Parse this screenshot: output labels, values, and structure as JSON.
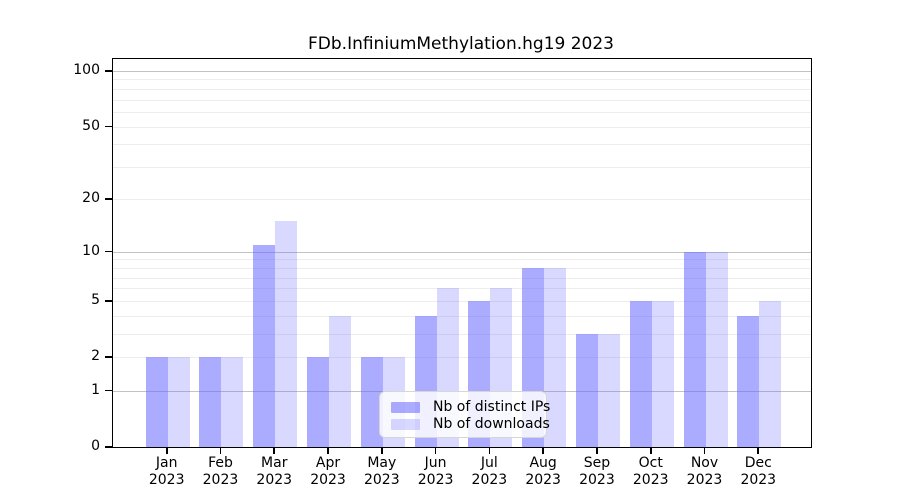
{
  "chart_data": {
    "type": "bar",
    "title": "FDb.InfiniumMethylation.hg19 2023",
    "categories": [
      "Jan",
      "Feb",
      "Mar",
      "Apr",
      "May",
      "Jun",
      "Jul",
      "Aug",
      "Sep",
      "Oct",
      "Nov",
      "Dec"
    ],
    "year_label": "2023",
    "series": [
      {
        "name": "Nb of distinct IPs",
        "key": "distinct-ips",
        "color": "rgba(102,102,255,0.55)",
        "values": [
          2,
          2,
          11,
          2,
          2,
          4,
          5,
          8,
          3,
          5,
          10,
          4
        ]
      },
      {
        "name": "Nb of downloads",
        "key": "downloads",
        "color": "rgba(102,102,255,0.25)",
        "values": [
          2,
          2,
          15,
          4,
          2,
          6,
          6,
          8,
          3,
          5,
          10,
          5
        ]
      }
    ],
    "scale": "log1p",
    "ylim": [
      0,
      116
    ],
    "y_ticks": [
      0,
      1,
      2,
      5,
      10,
      20,
      50,
      100
    ],
    "grid": {
      "major_lines": [
        1,
        10,
        100
      ],
      "major_color": "#c3c3c3",
      "minor_color": "#ededed",
      "minor_bases": [
        2,
        3,
        4,
        5,
        6,
        7,
        8,
        9
      ],
      "minor_decades": [
        1,
        10
      ]
    },
    "frame_color": "#000000",
    "legend_position": "bottom-center"
  }
}
